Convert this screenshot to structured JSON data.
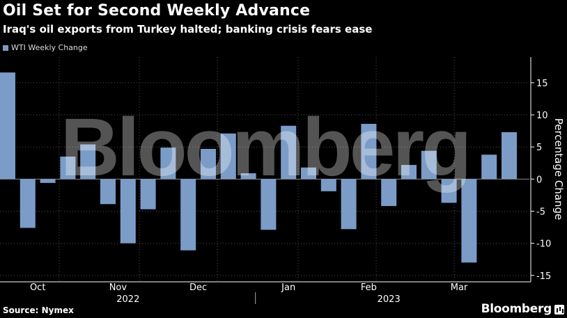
{
  "header": {
    "title": "Oil Set for Second Weekly Advance",
    "subtitle": "Iraq's oil exports from Turkey halted; banking crisis fears ease"
  },
  "footer": {
    "source": "Source: Nymex",
    "brand": "Bloomberg",
    "watermark": "Bloomberg"
  },
  "colors": {
    "bar": "#7b9cc7",
    "background": "#000000",
    "grid": "#555555"
  },
  "chart_data": {
    "type": "bar",
    "series": [
      {
        "name": "WTI Weekly Change",
        "values": [
          16.6,
          -7.6,
          -0.6,
          3.5,
          5.4,
          -3.9,
          -10.0,
          -4.7,
          4.9,
          -11.1,
          4.7,
          7.1,
          0.9,
          -7.9,
          8.3,
          1.8,
          -1.9,
          -7.8,
          8.6,
          -4.2,
          2.2,
          4.4,
          -3.7,
          -13.0,
          3.8,
          7.3
        ]
      }
    ],
    "ylabel": "Percentage Change",
    "ylim": [
      -16,
      19
    ],
    "yticks": [
      15,
      10,
      5,
      0,
      -5,
      -10,
      -15
    ],
    "month_labels": [
      {
        "label": "Oct",
        "index": 1.5
      },
      {
        "label": "Nov",
        "index": 5.5
      },
      {
        "label": "Dec",
        "index": 9.5
      },
      {
        "label": "Jan",
        "index": 14
      },
      {
        "label": "Feb",
        "index": 18
      },
      {
        "label": "Mar",
        "index": 22.5
      }
    ],
    "year_labels": [
      {
        "label": "2022",
        "index": 6
      },
      {
        "label": "2023",
        "index": 19
      }
    ],
    "year_divider_index": 12.35,
    "grid": true,
    "legend": "top-left"
  }
}
